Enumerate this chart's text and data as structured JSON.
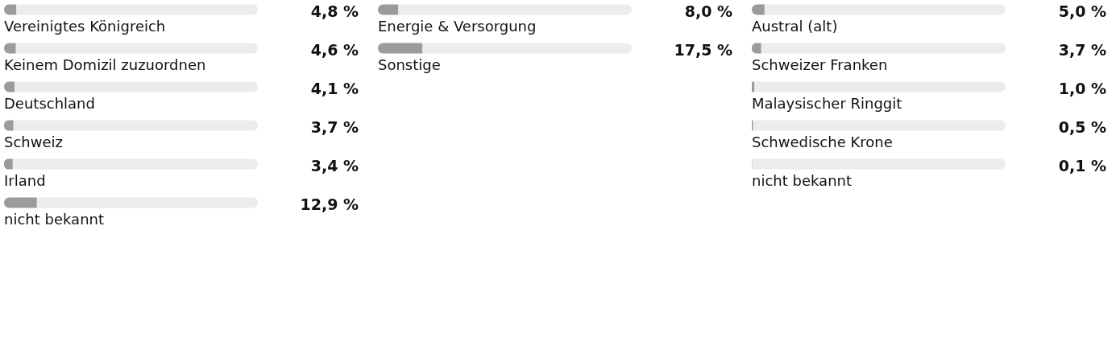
{
  "chart_data": [
    {
      "type": "bar",
      "orientation": "horizontal",
      "categories": [
        "Vereinigtes Königreich",
        "Keinem Domizil zuzuordnen",
        "Deutschland",
        "Schweiz",
        "Irland",
        "nicht bekannt"
      ],
      "values": [
        4.8,
        4.6,
        4.1,
        3.7,
        3.4,
        12.9
      ],
      "value_labels": [
        "4,8 %",
        "4,6 %",
        "4,1 %",
        "3,7 %",
        "3,4 %",
        "12,9 %"
      ],
      "color": "#9b9b9b",
      "xlim": [
        0,
        100
      ],
      "tick_labels": false
    },
    {
      "type": "bar",
      "orientation": "horizontal",
      "categories": [
        "Energie & Versorgung",
        "Sonstige"
      ],
      "values": [
        8.0,
        17.5
      ],
      "value_labels": [
        "8,0 %",
        "17,5 %"
      ],
      "color": "#9b9b9b",
      "xlim": [
        0,
        100
      ],
      "tick_labels": false
    },
    {
      "type": "bar",
      "orientation": "horizontal",
      "categories": [
        "Austral (alt)",
        "Schweizer Franken",
        "Malaysischer Ringgit",
        "Schwedische Krone",
        "nicht bekannt"
      ],
      "values": [
        5.0,
        3.7,
        1.0,
        0.5,
        0.1
      ],
      "value_labels": [
        "5,0 %",
        "3,7 %",
        "1,0 %",
        "0,5 %",
        "0,1 %"
      ],
      "color": "#9b9b9b",
      "xlim": [
        0,
        100
      ],
      "tick_labels": false
    }
  ]
}
